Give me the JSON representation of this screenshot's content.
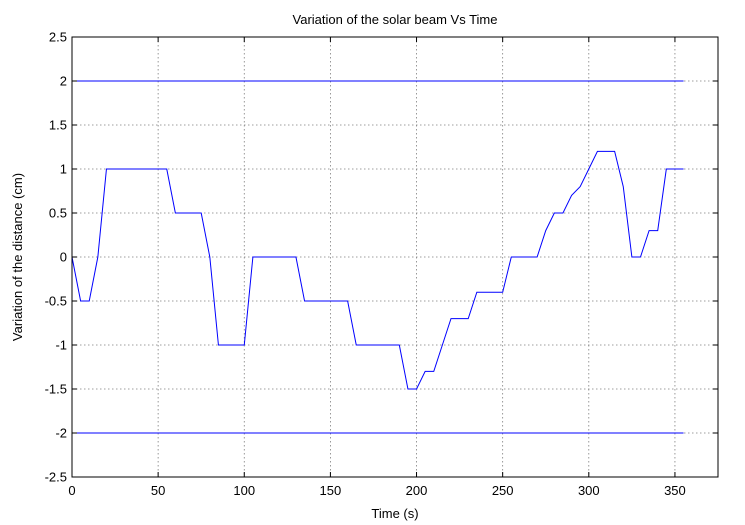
{
  "chart_data": {
    "type": "line",
    "title": "Variation of the solar beam Vs Time",
    "xlabel": "Time (s)",
    "ylabel": "Variation of the distance (cm)",
    "xlim": [
      0,
      375
    ],
    "ylim": [
      -2.5,
      2.5
    ],
    "xticks": [
      "0",
      "50",
      "100",
      "150",
      "200",
      "250",
      "300",
      "350"
    ],
    "yticks": [
      "-2.5",
      "-2",
      "-1.5",
      "-1",
      "-0.5",
      "0",
      "0.5",
      "1",
      "1.5",
      "2",
      "2.5"
    ],
    "grid": true,
    "color": "#0000ff",
    "series": [
      {
        "x": [
          0,
          5,
          10,
          15,
          20,
          25,
          30,
          35,
          40,
          45,
          50,
          55,
          60,
          65,
          70,
          75,
          80,
          85,
          90,
          95,
          100,
          105,
          110,
          115,
          120,
          125,
          130,
          135,
          140,
          145,
          150,
          155,
          160,
          165,
          170,
          175,
          180,
          185,
          190,
          195,
          200,
          205,
          210,
          215,
          220,
          225,
          230,
          235,
          240,
          245,
          250,
          255,
          260,
          265,
          270,
          275,
          280,
          285,
          290,
          295,
          300,
          305,
          310,
          315,
          320,
          325,
          330,
          335,
          340,
          345,
          350,
          355
        ],
        "y": [
          0,
          -0.5,
          -0.5,
          0,
          1,
          1,
          1,
          1,
          1,
          1,
          1,
          1,
          0.5,
          0.5,
          0.5,
          0.5,
          0,
          -1,
          -1,
          -1,
          -1,
          0,
          0,
          0,
          0,
          0,
          0,
          -0.5,
          -0.5,
          -0.5,
          -0.5,
          -0.5,
          -0.5,
          -1,
          -1,
          -1,
          -1,
          -1,
          -1,
          -1.5,
          -1.5,
          -1.3,
          -1.3,
          -1,
          -0.7,
          -0.7,
          -0.7,
          -0.4,
          -0.4,
          -0.4,
          -0.4,
          0,
          0,
          0,
          0,
          0.3,
          0.5,
          0.5,
          0.7,
          0.8,
          1,
          1.2,
          1.2,
          1.2,
          0.8,
          0,
          0,
          0.3,
          0.3,
          1,
          1,
          1
        ]
      },
      {
        "x": [
          0,
          355
        ],
        "y": [
          2,
          2
        ]
      },
      {
        "x": [
          0,
          355
        ],
        "y": [
          -2,
          -2
        ]
      }
    ]
  }
}
